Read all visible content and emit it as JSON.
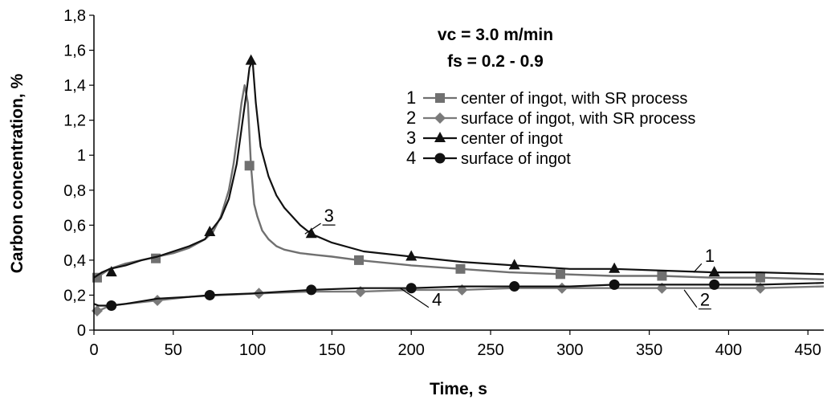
{
  "chart_data": {
    "type": "line",
    "xlabel": "Time, s",
    "ylabel": "Carbon concentration, %",
    "xlim": [
      0,
      460
    ],
    "ylim": [
      0,
      1.8
    ],
    "x_ticks": [
      "0",
      "50",
      "100",
      "150",
      "200",
      "250",
      "300",
      "350",
      "400",
      "450"
    ],
    "y_ticks": [
      "0",
      "0,2",
      "0,4",
      "0,6",
      "0,8",
      "1",
      "1,2",
      "1,4",
      "1,6",
      "1,8"
    ],
    "annotations": [
      "vc = 3.0 m/min",
      "fs = 0.2 - 0.9"
    ],
    "series": [
      {
        "name": "center of ingot, with SR process",
        "number": "1",
        "marker": "square",
        "color": "#707070",
        "x": [
          0,
          5,
          10,
          20,
          30,
          40,
          50,
          60,
          70,
          75,
          80,
          85,
          88,
          91,
          93,
          95,
          97,
          99,
          101,
          103,
          106,
          110,
          115,
          120,
          130,
          140,
          150,
          167,
          200,
          231,
          262,
          294,
          326,
          358,
          390,
          420,
          460
        ],
        "y": [
          0.3,
          0.32,
          0.35,
          0.38,
          0.4,
          0.42,
          0.44,
          0.47,
          0.52,
          0.56,
          0.65,
          0.8,
          0.95,
          1.15,
          1.3,
          1.4,
          1.3,
          0.94,
          0.72,
          0.65,
          0.57,
          0.52,
          0.48,
          0.46,
          0.44,
          0.43,
          0.42,
          0.4,
          0.37,
          0.35,
          0.33,
          0.32,
          0.31,
          0.31,
          0.3,
          0.3,
          0.29
        ]
      },
      {
        "name": "surface of ingot, with SR process",
        "number": "2",
        "marker": "diamond",
        "color": "#7a7a7a",
        "x": [
          0,
          3,
          10,
          20,
          40,
          60,
          80,
          104,
          136,
          168,
          200,
          232,
          264,
          295,
          327,
          358,
          420,
          460
        ],
        "y": [
          0.1,
          0.11,
          0.14,
          0.15,
          0.17,
          0.19,
          0.2,
          0.21,
          0.22,
          0.22,
          0.23,
          0.23,
          0.24,
          0.24,
          0.24,
          0.24,
          0.24,
          0.25
        ]
      },
      {
        "name": "center of ingot",
        "number": "3",
        "marker": "triangle",
        "color": "#111111",
        "x": [
          0,
          5,
          10,
          20,
          30,
          40,
          50,
          60,
          70,
          73,
          80,
          85,
          90,
          93,
          96,
          98,
          100,
          102,
          105,
          110,
          115,
          120,
          130,
          137,
          150,
          170,
          200,
          232,
          265,
          300,
          328,
          360,
          391,
          420,
          460
        ],
        "y": [
          0.3,
          0.33,
          0.35,
          0.37,
          0.4,
          0.42,
          0.45,
          0.48,
          0.52,
          0.56,
          0.64,
          0.75,
          0.95,
          1.15,
          1.35,
          1.5,
          1.54,
          1.3,
          1.05,
          0.88,
          0.77,
          0.7,
          0.6,
          0.55,
          0.5,
          0.45,
          0.42,
          0.39,
          0.37,
          0.35,
          0.35,
          0.34,
          0.33,
          0.33,
          0.32
        ]
      },
      {
        "name": "surface of ingot",
        "number": "4",
        "marker": "circle",
        "color": "#111111",
        "x": [
          0,
          3,
          11,
          20,
          40,
          60,
          73,
          100,
          137,
          168,
          200,
          232,
          265,
          300,
          328,
          360,
          391,
          420,
          460
        ],
        "y": [
          0.15,
          0.14,
          0.14,
          0.15,
          0.18,
          0.19,
          0.2,
          0.21,
          0.23,
          0.24,
          0.24,
          0.25,
          0.25,
          0.25,
          0.26,
          0.26,
          0.26,
          0.26,
          0.27
        ]
      }
    ],
    "marker_points": {
      "1": [
        [
          2,
          0.3
        ],
        [
          39,
          0.41
        ],
        [
          98,
          0.94
        ],
        [
          167,
          0.4
        ],
        [
          231,
          0.35
        ],
        [
          294,
          0.32
        ],
        [
          358,
          0.31
        ],
        [
          420,
          0.3
        ]
      ],
      "2": [
        [
          2,
          0.11
        ],
        [
          40,
          0.17
        ],
        [
          104,
          0.21
        ],
        [
          168,
          0.22
        ],
        [
          232,
          0.23
        ],
        [
          295,
          0.24
        ],
        [
          358,
          0.24
        ],
        [
          420,
          0.24
        ]
      ],
      "3": [
        [
          11,
          0.33
        ],
        [
          73,
          0.56
        ],
        [
          99,
          1.54
        ],
        [
          137,
          0.55
        ],
        [
          200,
          0.42
        ],
        [
          265,
          0.37
        ],
        [
          328,
          0.35
        ],
        [
          391,
          0.33
        ]
      ],
      "4": [
        [
          11,
          0.14
        ],
        [
          73,
          0.2
        ],
        [
          137,
          0.23
        ],
        [
          200,
          0.24
        ],
        [
          265,
          0.25
        ],
        [
          328,
          0.26
        ],
        [
          391,
          0.26
        ]
      ]
    },
    "callouts": [
      {
        "label": "1",
        "x": 383,
        "y": 0.38
      },
      {
        "label": "2",
        "x": 380,
        "y": 0.13
      },
      {
        "label": "3",
        "x": 143,
        "y": 0.61
      },
      {
        "label": "4",
        "x": 211,
        "y": 0.13
      }
    ]
  }
}
